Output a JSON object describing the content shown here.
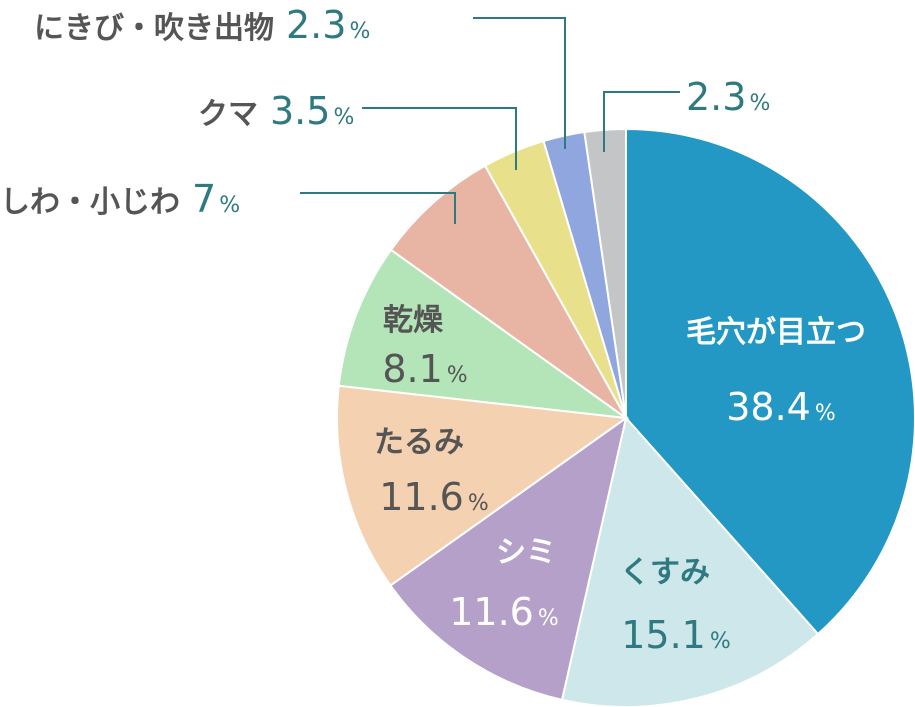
{
  "chart_data": {
    "type": "pie",
    "start_angle_deg": 0,
    "direction": "clockwise",
    "slices": [
      {
        "label": "毛穴が目立つ",
        "value": 38.4,
        "value_text": "38.4",
        "unit": "%",
        "color": "#2498c4",
        "label_color": "#ffffff",
        "value_color": "#ffffff"
      },
      {
        "label": "くすみ",
        "value": 15.1,
        "value_text": "15.1",
        "unit": "%",
        "color": "#cde7ea",
        "label_color": "#2f7a80",
        "value_color": "#2f7a80"
      },
      {
        "label": "シミ",
        "value": 11.6,
        "value_text": "11.6",
        "unit": "%",
        "color": "#b4a0c9",
        "label_color": "#ffffff",
        "value_color": "#ffffff"
      },
      {
        "label": "たるみ",
        "value": 11.6,
        "value_text": "11.6",
        "unit": "%",
        "color": "#f4d1b1",
        "label_color": "#555555",
        "value_color": "#555555"
      },
      {
        "label": "乾燥",
        "value": 8.1,
        "value_text": "8.1",
        "unit": "%",
        "color": "#b3e5b8",
        "label_color": "#555555",
        "value_color": "#555555"
      },
      {
        "label": "しわ・小じわ",
        "value": 7,
        "value_text": "7",
        "unit": "%",
        "color": "#e8b4a3",
        "label_color": "#555555",
        "value_color": "#2f7a80"
      },
      {
        "label": "クマ",
        "value": 3.5,
        "value_text": "3.5",
        "unit": "%",
        "color": "#e8e08b",
        "label_color": "#555555",
        "value_color": "#2f7a80"
      },
      {
        "label": "にきび・吹き出物",
        "value": 2.3,
        "value_text": "2.3",
        "unit": "%",
        "color": "#8fa6df",
        "label_color": "#555555",
        "value_color": "#2f7a80"
      },
      {
        "label": "",
        "value": 2.3,
        "value_text": "2.3",
        "unit": "%",
        "color": "#c3c5c6",
        "label_color": "#555555",
        "value_color": "#2f7a80"
      }
    ],
    "leader_line_color": "#2f7a80"
  }
}
